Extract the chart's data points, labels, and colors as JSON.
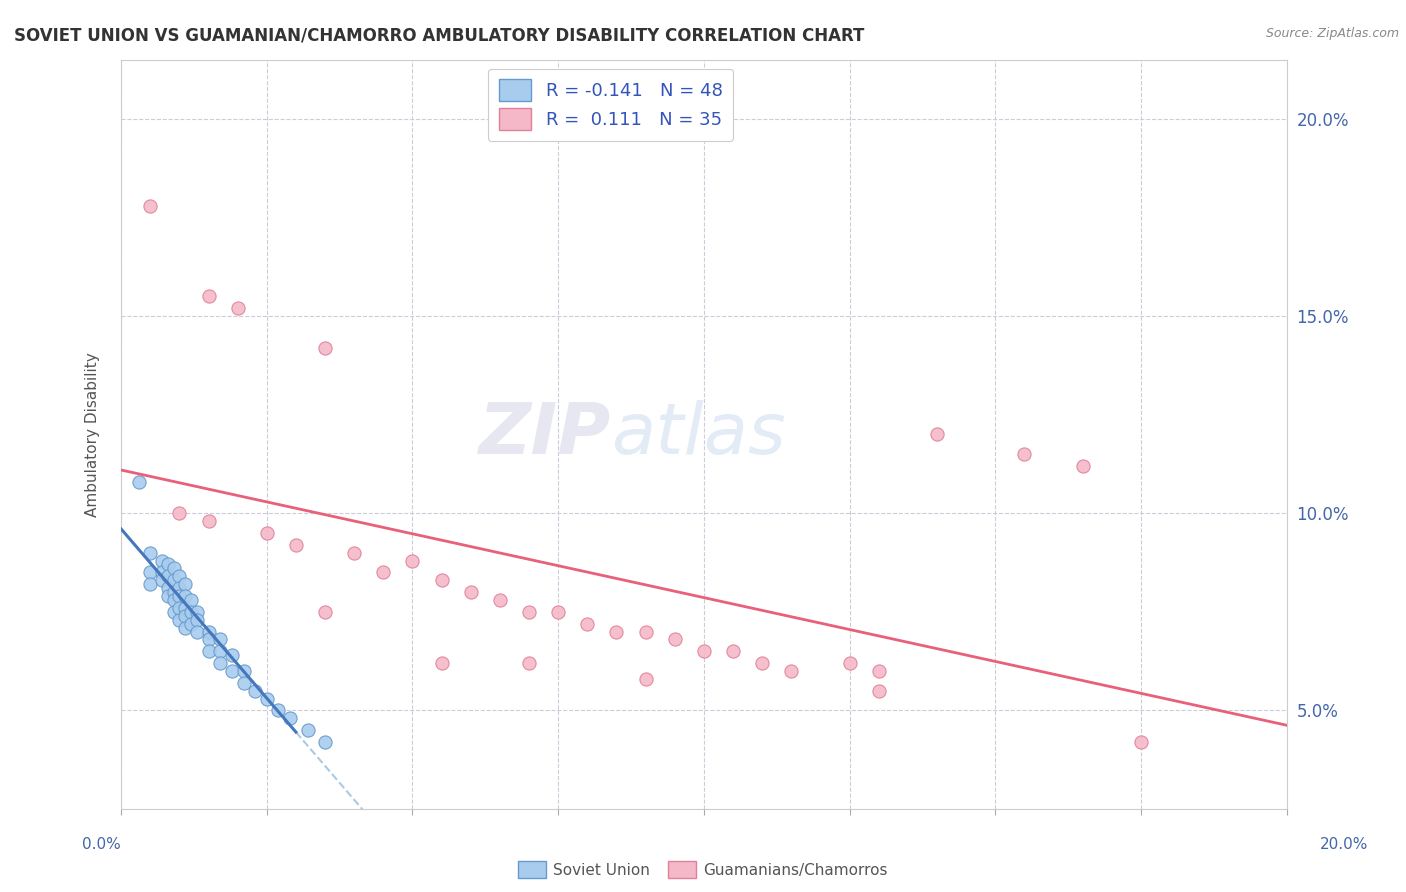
{
  "title": "SOVIET UNION VS GUAMANIAN/CHAMORRO AMBULATORY DISABILITY CORRELATION CHART",
  "source": "Source: ZipAtlas.com",
  "ylabel": "Ambulatory Disability",
  "color_soviet": "#a8ccee",
  "color_soviet_edge": "#6699cc",
  "color_guam": "#f5b8c8",
  "color_guam_edge": "#e0809a",
  "color_soviet_line": "#4477bb",
  "color_guam_line": "#e8607a",
  "color_soviet_dash": "#99bbdd",
  "watermark_zip": "ZIP",
  "watermark_atlas": "atlas",
  "legend_label1": "R = -0.141   N = 48",
  "legend_label2": "R =  0.111   N = 35",
  "bottom_label1": "Soviet Union",
  "bottom_label2": "Guamanians/Chamorros",
  "soviet_points": [
    [
      0.3,
      10.8
    ],
    [
      0.5,
      9.0
    ],
    [
      0.5,
      8.5
    ],
    [
      0.5,
      8.2
    ],
    [
      0.7,
      8.8
    ],
    [
      0.7,
      8.5
    ],
    [
      0.7,
      8.3
    ],
    [
      0.8,
      8.7
    ],
    [
      0.8,
      8.4
    ],
    [
      0.8,
      8.1
    ],
    [
      0.8,
      7.9
    ],
    [
      0.9,
      8.6
    ],
    [
      0.9,
      8.3
    ],
    [
      0.9,
      8.0
    ],
    [
      0.9,
      7.8
    ],
    [
      0.9,
      7.5
    ],
    [
      1.0,
      8.4
    ],
    [
      1.0,
      8.1
    ],
    [
      1.0,
      7.9
    ],
    [
      1.0,
      7.6
    ],
    [
      1.0,
      7.3
    ],
    [
      1.1,
      8.2
    ],
    [
      1.1,
      7.9
    ],
    [
      1.1,
      7.6
    ],
    [
      1.1,
      7.4
    ],
    [
      1.1,
      7.1
    ],
    [
      1.2,
      7.8
    ],
    [
      1.2,
      7.5
    ],
    [
      1.2,
      7.2
    ],
    [
      1.3,
      7.5
    ],
    [
      1.3,
      7.3
    ],
    [
      1.3,
      7.0
    ],
    [
      1.5,
      7.0
    ],
    [
      1.5,
      6.8
    ],
    [
      1.5,
      6.5
    ],
    [
      1.7,
      6.8
    ],
    [
      1.7,
      6.5
    ],
    [
      1.7,
      6.2
    ],
    [
      1.9,
      6.4
    ],
    [
      1.9,
      6.0
    ],
    [
      2.1,
      6.0
    ],
    [
      2.1,
      5.7
    ],
    [
      2.3,
      5.5
    ],
    [
      2.5,
      5.3
    ],
    [
      2.7,
      5.0
    ],
    [
      2.9,
      4.8
    ],
    [
      3.2,
      4.5
    ],
    [
      3.5,
      4.2
    ]
  ],
  "guam_points": [
    [
      0.5,
      17.8
    ],
    [
      1.5,
      15.5
    ],
    [
      2.0,
      15.2
    ],
    [
      3.5,
      14.2
    ],
    [
      1.0,
      10.0
    ],
    [
      1.5,
      9.8
    ],
    [
      2.5,
      9.5
    ],
    [
      3.0,
      9.2
    ],
    [
      4.0,
      9.0
    ],
    [
      4.5,
      8.5
    ],
    [
      5.0,
      8.8
    ],
    [
      5.5,
      8.3
    ],
    [
      6.0,
      8.0
    ],
    [
      6.5,
      7.8
    ],
    [
      7.0,
      7.5
    ],
    [
      7.5,
      7.5
    ],
    [
      8.0,
      7.2
    ],
    [
      8.5,
      7.0
    ],
    [
      9.0,
      7.0
    ],
    [
      9.5,
      6.8
    ],
    [
      10.0,
      6.5
    ],
    [
      10.5,
      6.5
    ],
    [
      11.0,
      6.2
    ],
    [
      11.5,
      6.0
    ],
    [
      12.5,
      6.2
    ],
    [
      13.0,
      6.0
    ],
    [
      14.0,
      12.0
    ],
    [
      15.5,
      11.5
    ],
    [
      16.5,
      11.2
    ],
    [
      17.5,
      4.2
    ],
    [
      3.5,
      7.5
    ],
    [
      5.5,
      6.2
    ],
    [
      7.0,
      6.2
    ],
    [
      9.0,
      5.8
    ],
    [
      13.0,
      5.5
    ]
  ]
}
